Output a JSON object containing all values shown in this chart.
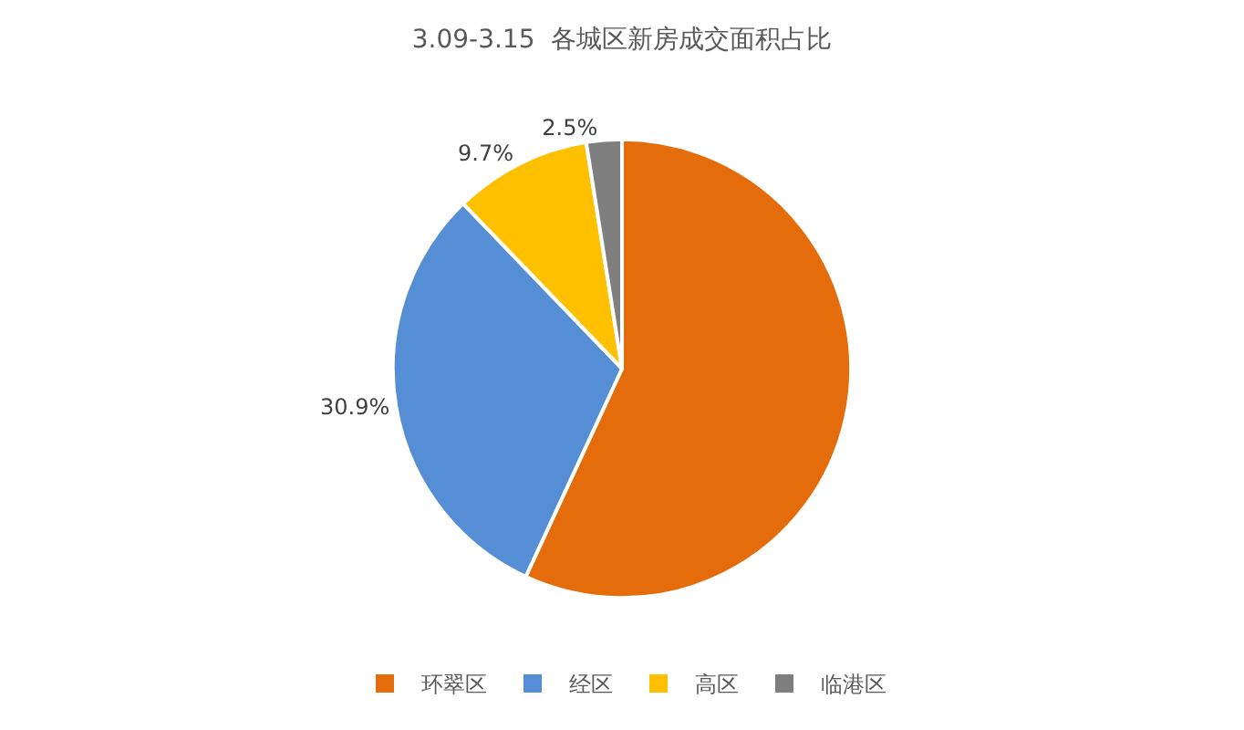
{
  "chart_data": {
    "type": "pie",
    "title": "3.09-3.15  各城区新房成交面积占比",
    "categories": [
      "环翠区",
      "经区",
      "高区",
      "临港区"
    ],
    "values": [
      56.9,
      30.9,
      9.7,
      2.5
    ],
    "colors": [
      "#e46c0a",
      "#558ed5",
      "#ffc000",
      "#7f7f7f"
    ],
    "value_labels": [
      null,
      "30.9%",
      "9.7%",
      "2.5%"
    ],
    "legend": "bottom"
  }
}
